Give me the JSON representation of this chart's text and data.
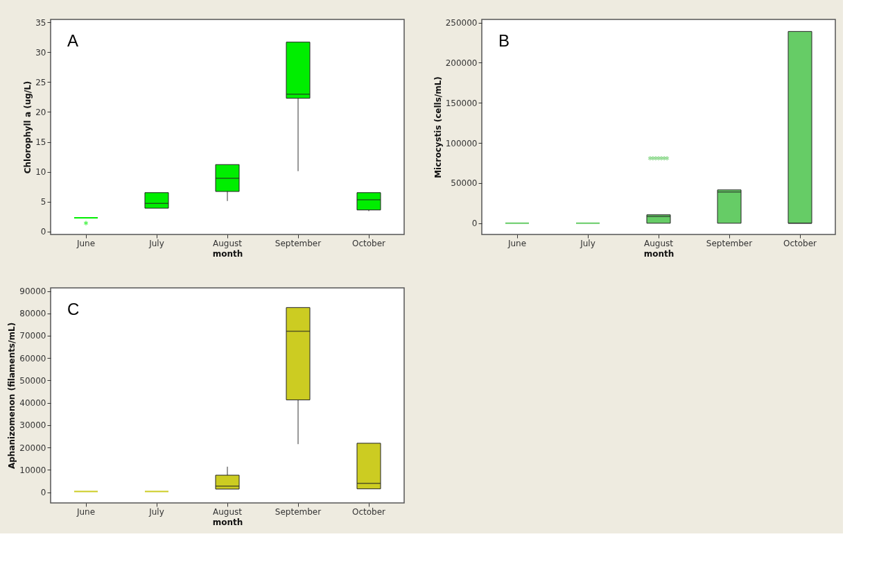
{
  "chart_data": [
    {
      "type": "box",
      "categories": [
        "June",
        "July",
        "August",
        "September",
        "October"
      ],
      "xlabel": "month",
      "ylabel": "Chlorophyll a (ug/L)",
      "ylim": [
        -0.5,
        35.5
      ],
      "yticks": [
        0,
        5,
        10,
        15,
        20,
        25,
        30,
        35
      ],
      "grid": false,
      "annotations": [
        "A"
      ],
      "series": [
        {
          "color": "#00ee00",
          "boxes": [
            {
              "low": 2.3,
              "q1": 2.3,
              "median": 2.3,
              "q3": 2.3,
              "high": 2.3,
              "outliers": [
                1.4
              ]
            },
            {
              "low": 3.9,
              "q1": 3.9,
              "median": 4.7,
              "q3": 6.5,
              "high": 6.5
            },
            {
              "low": 5.1,
              "q1": 6.7,
              "median": 8.9,
              "q3": 11.2,
              "high": 11.2
            },
            {
              "low": 10.1,
              "q1": 22.3,
              "median": 23.0,
              "q3": 31.7,
              "high": 31.7
            },
            {
              "low": 3.4,
              "q1": 3.6,
              "median": 5.3,
              "q3": 6.5,
              "high": 6.5
            }
          ]
        }
      ]
    },
    {
      "type": "box",
      "categories": [
        "June",
        "July",
        "August",
        "September",
        "October"
      ],
      "xlabel": "month",
      "ylabel": "Microcystis (cells/mL)",
      "ylim": [
        -14000,
        254000
      ],
      "yticks": [
        0,
        50000,
        100000,
        150000,
        200000,
        250000
      ],
      "grid": false,
      "annotations": [
        "B"
      ],
      "series": [
        {
          "color": "#66cc66",
          "boxes": [
            {
              "low": 0,
              "q1": 0,
              "median": 0,
              "q3": 0,
              "high": 0
            },
            {
              "low": 0,
              "q1": 0,
              "median": 0,
              "q3": 0,
              "high": 0
            },
            {
              "low": 0,
              "q1": 0,
              "median": 8500,
              "q3": 10500,
              "high": 10500,
              "outliers": [
                81000,
                81000,
                81000,
                81000,
                81000,
                81000,
                81000
              ]
            },
            {
              "low": 0,
              "q1": 0,
              "median": 39000,
              "q3": 41500,
              "high": 41500
            },
            {
              "low": 0,
              "q1": 0,
              "median": 0,
              "q3": 239000,
              "high": 239000
            }
          ]
        }
      ]
    },
    {
      "type": "box",
      "categories": [
        "June",
        "July",
        "August",
        "September",
        "October"
      ],
      "xlabel": "month",
      "ylabel": "Aphanizomenon (filaments/mL)",
      "ylim": [
        -4800,
        91400
      ],
      "yticks": [
        0,
        10000,
        20000,
        30000,
        40000,
        50000,
        60000,
        70000,
        80000,
        90000
      ],
      "grid": false,
      "annotations": [
        "C"
      ],
      "series": [
        {
          "color": "#cccc22",
          "boxes": [
            {
              "low": 300,
              "q1": 300,
              "median": 300,
              "q3": 300,
              "high": 300
            },
            {
              "low": 300,
              "q1": 300,
              "median": 300,
              "q3": 300,
              "high": 300
            },
            {
              "low": 1400,
              "q1": 1400,
              "median": 2700,
              "q3": 7600,
              "high": 11400
            },
            {
              "low": 21500,
              "q1": 41300,
              "median": 72000,
              "q3": 82600,
              "high": 82600
            },
            {
              "low": 1500,
              "q1": 1500,
              "median": 4000,
              "q3": 21900,
              "high": 21900
            }
          ]
        }
      ]
    }
  ]
}
